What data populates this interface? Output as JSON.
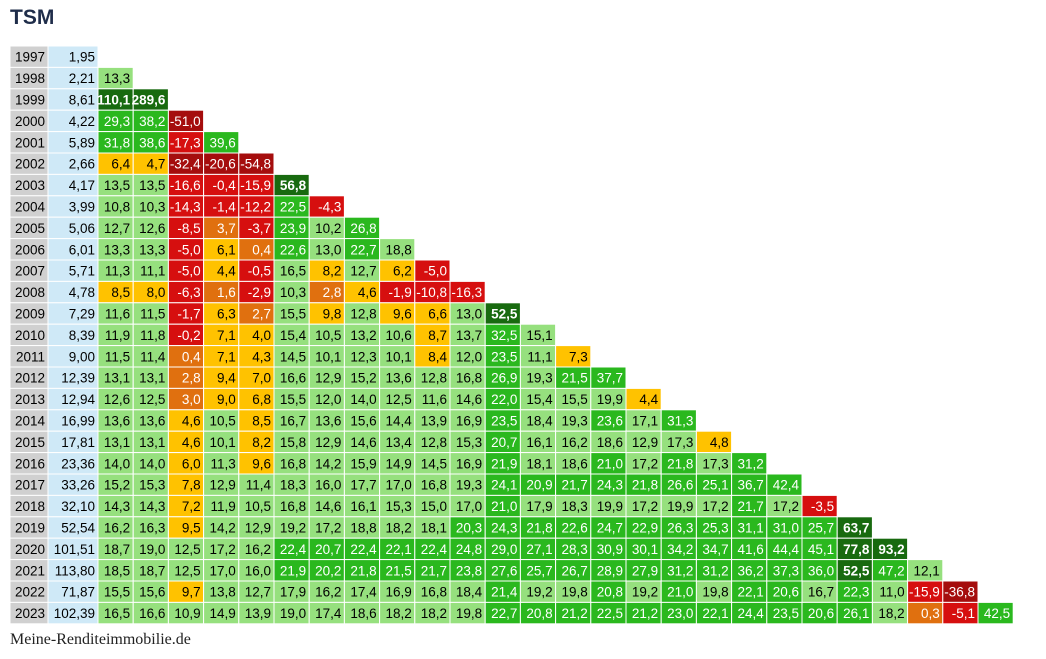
{
  "title": "TSM",
  "footer": "Meine-Renditeimmobilie.de",
  "colors": {
    "year_bg": "#d0d0d0",
    "price_bg": "#cfe9f7",
    "red": "#d60f0f",
    "dark_red": "#a50d0d",
    "orange": "#e0700f",
    "yellow": "#ffc200",
    "light_green": "#96e07e",
    "green": "#2ab81e",
    "dark_green": "#186a0f"
  },
  "chart_data": {
    "type": "table",
    "title": "TSM",
    "years": [
      "1997",
      "1998",
      "1999",
      "2000",
      "2001",
      "2002",
      "2003",
      "2004",
      "2005",
      "2006",
      "2007",
      "2008",
      "2009",
      "2010",
      "2011",
      "2012",
      "2013",
      "2014",
      "2015",
      "2016",
      "2017",
      "2018",
      "2019",
      "2020",
      "2021",
      "2022",
      "2023"
    ],
    "prices": [
      "1,95",
      "2,21",
      "8,61",
      "4,22",
      "5,89",
      "2,66",
      "4,17",
      "3,99",
      "5,06",
      "6,01",
      "5,71",
      "4,78",
      "7,29",
      "8,39",
      "9,00",
      "12,39",
      "12,94",
      "16,99",
      "17,81",
      "23,36",
      "33,26",
      "32,10",
      "52,54",
      "101,51",
      "113,80",
      "71,87",
      "102,39"
    ],
    "returns": [
      [],
      [
        "13,3"
      ],
      [
        "110,1",
        "289,6"
      ],
      [
        "29,3",
        "38,2",
        "-51,0"
      ],
      [
        "31,8",
        "38,6",
        "-17,3",
        "39,6"
      ],
      [
        "6,4",
        "4,7",
        "-32,4",
        "-20,6",
        "-54,8"
      ],
      [
        "13,5",
        "13,5",
        "-16,6",
        "-0,4",
        "-15,9",
        "56,8"
      ],
      [
        "10,8",
        "10,3",
        "-14,3",
        "-1,4",
        "-12,2",
        "22,5",
        "-4,3"
      ],
      [
        "12,7",
        "12,6",
        "-8,5",
        "3,7",
        "-3,7",
        "23,9",
        "10,2",
        "26,8"
      ],
      [
        "13,3",
        "13,3",
        "-5,0",
        "6,1",
        "0,4",
        "22,6",
        "13,0",
        "22,7",
        "18,8"
      ],
      [
        "11,3",
        "11,1",
        "-5,0",
        "4,4",
        "-0,5",
        "16,5",
        "8,2",
        "12,7",
        "6,2",
        "-5,0"
      ],
      [
        "8,5",
        "8,0",
        "-6,3",
        "1,6",
        "-2,9",
        "10,3",
        "2,8",
        "4,6",
        "-1,9",
        "-10,8",
        "-16,3"
      ],
      [
        "11,6",
        "11,5",
        "-1,7",
        "6,3",
        "2,7",
        "15,5",
        "9,8",
        "12,8",
        "9,6",
        "6,6",
        "13,0",
        "52,5"
      ],
      [
        "11,9",
        "11,8",
        "-0,2",
        "7,1",
        "4,0",
        "15,4",
        "10,5",
        "13,2",
        "10,6",
        "8,7",
        "13,7",
        "32,5",
        "15,1"
      ],
      [
        "11,5",
        "11,4",
        "0,4",
        "7,1",
        "4,3",
        "14,5",
        "10,1",
        "12,3",
        "10,1",
        "8,4",
        "12,0",
        "23,5",
        "11,1",
        "7,3"
      ],
      [
        "13,1",
        "13,1",
        "2,8",
        "9,4",
        "7,0",
        "16,6",
        "12,9",
        "15,2",
        "13,6",
        "12,8",
        "16,8",
        "26,9",
        "19,3",
        "21,5",
        "37,7"
      ],
      [
        "12,6",
        "12,5",
        "3,0",
        "9,0",
        "6,8",
        "15,5",
        "12,0",
        "14,0",
        "12,5",
        "11,6",
        "14,6",
        "22,0",
        "15,4",
        "15,5",
        "19,9",
        "4,4"
      ],
      [
        "13,6",
        "13,6",
        "4,6",
        "10,5",
        "8,5",
        "16,7",
        "13,6",
        "15,6",
        "14,4",
        "13,9",
        "16,9",
        "23,5",
        "18,4",
        "19,3",
        "23,6",
        "17,1",
        "31,3"
      ],
      [
        "13,1",
        "13,1",
        "4,6",
        "10,1",
        "8,2",
        "15,8",
        "12,9",
        "14,6",
        "13,4",
        "12,8",
        "15,3",
        "20,7",
        "16,1",
        "16,2",
        "18,6",
        "12,9",
        "17,3",
        "4,8"
      ],
      [
        "14,0",
        "14,0",
        "6,0",
        "11,3",
        "9,6",
        "16,8",
        "14,2",
        "15,9",
        "14,9",
        "14,5",
        "16,9",
        "21,9",
        "18,1",
        "18,6",
        "21,0",
        "17,2",
        "21,8",
        "17,3",
        "31,2"
      ],
      [
        "15,2",
        "15,3",
        "7,8",
        "12,9",
        "11,4",
        "18,3",
        "16,0",
        "17,7",
        "17,0",
        "16,8",
        "19,3",
        "24,1",
        "20,9",
        "21,7",
        "24,3",
        "21,8",
        "26,6",
        "25,1",
        "36,7",
        "42,4"
      ],
      [
        "14,3",
        "14,3",
        "7,2",
        "11,9",
        "10,5",
        "16,8",
        "14,6",
        "16,1",
        "15,3",
        "15,0",
        "17,0",
        "21,0",
        "17,9",
        "18,3",
        "19,9",
        "17,2",
        "19,9",
        "17,2",
        "21,7",
        "17,2",
        "-3,5"
      ],
      [
        "16,2",
        "16,3",
        "9,5",
        "14,2",
        "12,9",
        "19,2",
        "17,2",
        "18,8",
        "18,2",
        "18,1",
        "20,3",
        "24,3",
        "21,8",
        "22,6",
        "24,7",
        "22,9",
        "26,3",
        "25,3",
        "31,1",
        "31,0",
        "25,7",
        "63,7"
      ],
      [
        "18,7",
        "19,0",
        "12,5",
        "17,2",
        "16,2",
        "22,4",
        "20,7",
        "22,4",
        "22,1",
        "22,4",
        "24,8",
        "29,0",
        "27,1",
        "28,3",
        "30,9",
        "30,1",
        "34,2",
        "34,7",
        "41,6",
        "44,4",
        "45,1",
        "77,8",
        "93,2"
      ],
      [
        "18,5",
        "18,7",
        "12,5",
        "17,0",
        "16,0",
        "21,9",
        "20,2",
        "21,8",
        "21,5",
        "21,7",
        "23,8",
        "27,6",
        "25,7",
        "26,7",
        "28,9",
        "27,9",
        "31,2",
        "31,2",
        "36,2",
        "37,3",
        "36,0",
        "52,5",
        "47,2",
        "12,1"
      ],
      [
        "15,5",
        "15,6",
        "9,7",
        "13,8",
        "12,7",
        "17,9",
        "16,2",
        "17,4",
        "16,9",
        "16,8",
        "18,4",
        "21,4",
        "19,2",
        "19,8",
        "20,8",
        "19,2",
        "21,0",
        "19,8",
        "22,1",
        "20,6",
        "16,7",
        "22,3",
        "11,0",
        "-15,9",
        "-36,8"
      ],
      [
        "16,5",
        "16,6",
        "10,9",
        "14,9",
        "13,9",
        "19,0",
        "17,4",
        "18,6",
        "18,2",
        "18,2",
        "19,8",
        "22,7",
        "20,8",
        "21,2",
        "22,5",
        "21,2",
        "23,0",
        "22,1",
        "24,4",
        "23,5",
        "20,6",
        "26,1",
        "18,2",
        "0,3",
        "-5,1",
        "42,5"
      ]
    ]
  }
}
